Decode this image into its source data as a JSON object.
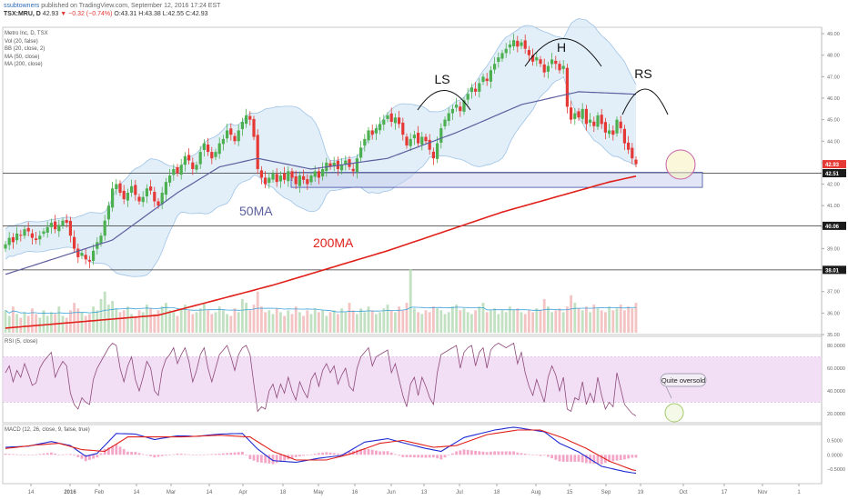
{
  "header": {
    "user": "ssubtowners",
    "published": "published on TradingView.com, September 12, 2016 17:24 EST",
    "symbol": "TSX:MRU, D",
    "last": "42.93",
    "change": "▼ −0.32 (−0.74%)",
    "ohlc": "O:43.31 H:43.38 L:42.55 C:42.93"
  },
  "indicators": [
    "Metro Inc, D, TSX",
    "Vol (20, false)",
    "BB (20, close, 2)",
    "MA (50, close)",
    "MA (200, close)"
  ],
  "rsi_label": "RSI (5, close)",
  "macd_label": "MACD (12, 26, close, 9, false, true)",
  "annotations": {
    "ls": "LS",
    "h": "H",
    "rs": "RS",
    "ma50": "50MA",
    "ma200": "200MA",
    "oversold": "Quite oversold"
  },
  "colors": {
    "up": "#4caf50",
    "down": "#e53935",
    "ma50": "#5c5f9e",
    "ma200": "#e0201a",
    "bb": "#9fc3e6",
    "rsi": "#8e4a7a",
    "macd": "#1f2bd1",
    "signal": "#e0201a",
    "hist": "#f3a6c8",
    "box": "#3f4da1"
  },
  "chart_data": [
    {
      "type": "candlestick",
      "title": "Metro Inc, D, TSX",
      "x_ticks": [
        "14",
        "2016",
        "Feb",
        "14",
        "Mar",
        "14",
        "Apr",
        "18",
        "May",
        "16",
        "Jun",
        "13",
        "Jul",
        "18",
        "Aug",
        "15",
        "Sep",
        "19",
        "Oct",
        "17",
        "Nov",
        "1"
      ],
      "y_ticks": [
        "49.00",
        "48.00",
        "47.00",
        "46.00",
        "45.00",
        "44.00",
        "43.00",
        "42.00",
        "41.00",
        "40.00",
        "39.00",
        "38.00",
        "37.00",
        "36.00",
        "35.00"
      ],
      "ylim": [
        35,
        49.3
      ],
      "price_labels": [
        {
          "text": "42.93",
          "value": 42.93,
          "kind": "last"
        },
        {
          "text": "42.51",
          "value": 42.51,
          "kind": "level"
        },
        {
          "text": "40.06",
          "value": 40.06,
          "kind": "level"
        },
        {
          "text": "38.01",
          "value": 38.01,
          "kind": "level"
        }
      ],
      "support_box": {
        "from": "2016-04-01",
        "to": "2016-09-23",
        "low": 41.85,
        "high": 42.55
      },
      "closes": [
        39.2,
        39.5,
        39.3,
        39.7,
        39.6,
        39.9,
        39.8,
        39.5,
        39.4,
        39.6,
        39.8,
        40.0,
        40.2,
        39.9,
        40.1,
        40.3,
        40.2,
        39.6,
        39.0,
        38.6,
        38.8,
        38.5,
        38.4,
        38.9,
        39.3,
        39.6,
        40.3,
        41.0,
        41.8,
        42.0,
        41.6,
        41.3,
        41.6,
        41.9,
        41.5,
        41.2,
        41.4,
        41.8,
        41.7,
        41.2,
        41.0,
        41.6,
        42.1,
        42.4,
        42.7,
        42.5,
        42.9,
        43.3,
        43.1,
        42.7,
        42.9,
        43.5,
        43.9,
        43.5,
        43.2,
        43.5,
        43.9,
        44.1,
        44.5,
        44.3,
        44.0,
        44.5,
        44.9,
        45.2,
        45.0,
        44.2,
        42.7,
        42.3,
        42.0,
        42.3,
        42.5,
        42.1,
        42.4,
        42.2,
        42.6,
        42.3,
        42.0,
        42.4,
        42.2,
        42.0,
        42.4,
        42.6,
        42.3,
        42.7,
        43.0,
        42.8,
        43.0,
        42.7,
        42.9,
        43.1,
        42.8,
        42.6,
        43.2,
        43.7,
        44.1,
        44.5,
        44.3,
        44.6,
        44.8,
        45.0,
        45.2,
        44.9,
        45.1,
        44.8,
        44.3,
        43.8,
        44.1,
        44.3,
        43.9,
        44.2,
        44.0,
        43.6,
        43.2,
        43.9,
        44.6,
        45.0,
        45.3,
        45.5,
        45.7,
        45.4,
        45.9,
        46.2,
        46.5,
        46.3,
        46.7,
        47.0,
        46.8,
        47.3,
        47.6,
        47.9,
        48.1,
        48.3,
        48.5,
        48.7,
        48.4,
        48.6,
        48.3,
        48.0,
        47.7,
        47.9,
        47.6,
        47.2,
        47.5,
        47.8,
        47.6,
        47.3,
        47.5,
        45.6,
        45.0,
        45.3,
        45.1,
        45.5,
        44.8,
        45.0,
        44.7,
        45.2,
        44.8,
        44.4,
        44.5,
        44.3,
        45.0,
        44.6,
        43.9,
        43.6,
        43.2,
        42.93
      ],
      "ma50_anchors": [
        [
          0,
          37.8
        ],
        [
          28,
          39.4
        ],
        [
          45,
          41.6
        ],
        [
          56,
          42.8
        ],
        [
          66,
          43.2
        ],
        [
          80,
          42.7
        ],
        [
          100,
          43.2
        ],
        [
          118,
          44.4
        ],
        [
          135,
          45.7
        ],
        [
          150,
          46.3
        ],
        [
          176,
          46.1
        ]
      ],
      "ma200_anchors": [
        [
          0,
          35.3
        ],
        [
          40,
          35.9
        ],
        [
          70,
          37.3
        ],
        [
          100,
          38.9
        ],
        [
          130,
          40.7
        ],
        [
          158,
          42.1
        ],
        [
          171,
          42.6
        ],
        [
          176,
          42.85
        ]
      ],
      "volume": [
        12,
        9,
        14,
        10,
        8,
        11,
        9,
        13,
        10,
        8,
        12,
        9,
        11,
        10,
        14,
        9,
        8,
        12,
        16,
        13,
        11,
        9,
        10,
        14,
        12,
        18,
        22,
        15,
        17,
        13,
        11,
        12,
        14,
        10,
        9,
        12,
        11,
        15,
        13,
        10,
        12,
        14,
        16,
        12,
        11,
        9,
        13,
        15,
        12,
        10,
        11,
        13,
        16,
        12,
        10,
        11,
        14,
        12,
        10,
        9,
        13,
        11,
        18,
        16,
        12,
        15,
        22,
        14,
        11,
        12,
        10,
        13,
        11,
        9,
        12,
        10,
        14,
        11,
        9,
        12,
        10,
        13,
        11,
        12,
        9,
        11,
        12,
        10,
        13,
        11,
        16,
        12,
        10,
        13,
        11,
        14,
        12,
        10,
        11,
        13,
        15,
        12,
        11,
        14,
        12,
        16,
        34,
        13,
        11,
        10,
        12,
        11,
        14,
        13,
        12,
        10,
        11,
        14,
        15,
        12,
        13,
        11,
        10,
        12,
        14,
        16,
        11,
        12,
        13,
        10,
        12,
        11,
        14,
        12,
        13,
        11,
        10,
        12,
        11,
        13,
        12,
        18,
        14,
        11,
        12,
        13,
        11,
        14,
        20,
        16,
        13,
        12,
        14,
        11,
        15,
        13,
        12,
        11,
        14,
        12,
        13,
        15,
        12,
        14,
        13,
        16
      ]
    },
    {
      "type": "line",
      "title": "RSI (5, close)",
      "y_ticks": [
        "80.0000",
        "60.0000",
        "40.0000",
        "20.0000"
      ],
      "ylim": [
        12,
        88
      ],
      "band": [
        30,
        70
      ],
      "values": [
        56,
        62,
        48,
        58,
        52,
        64,
        55,
        45,
        47,
        60,
        66,
        70,
        74,
        52,
        60,
        66,
        62,
        38,
        28,
        24,
        34,
        30,
        28,
        50,
        60,
        66,
        72,
        78,
        82,
        80,
        60,
        48,
        62,
        70,
        50,
        40,
        52,
        66,
        60,
        40,
        36,
        58,
        68,
        72,
        78,
        64,
        72,
        78,
        66,
        48,
        58,
        72,
        78,
        60,
        48,
        60,
        72,
        76,
        80,
        70,
        58,
        72,
        78,
        80,
        72,
        46,
        22,
        26,
        24,
        40,
        46,
        34,
        46,
        38,
        52,
        40,
        32,
        48,
        40,
        34,
        50,
        56,
        44,
        58,
        64,
        56,
        62,
        46,
        54,
        60,
        44,
        40,
        60,
        70,
        74,
        78,
        62,
        70,
        72,
        74,
        76,
        56,
        64,
        50,
        36,
        26,
        46,
        52,
        36,
        52,
        44,
        34,
        28,
        56,
        72,
        74,
        76,
        78,
        80,
        60,
        74,
        78,
        80,
        62,
        74,
        78,
        60,
        76,
        80,
        82,
        80,
        78,
        80,
        82,
        64,
        74,
        56,
        44,
        36,
        50,
        40,
        30,
        52,
        62,
        54,
        40,
        52,
        24,
        22,
        34,
        32,
        48,
        28,
        38,
        30,
        52,
        36,
        24,
        30,
        26,
        56,
        42,
        28,
        24,
        20,
        18
      ]
    },
    {
      "type": "line",
      "title": "MACD (12, 26, close, 9, false, true)",
      "y_ticks": [
        "0.5000",
        "0.0000",
        "−0.5000"
      ],
      "ylim": [
        -1.0,
        1.05
      ],
      "macd_anchors": [
        [
          0,
          0.26
        ],
        [
          6,
          0.3
        ],
        [
          12,
          0.46
        ],
        [
          17,
          0.32
        ],
        [
          21,
          -0.05
        ],
        [
          24,
          0.05
        ],
        [
          29,
          0.74
        ],
        [
          34,
          0.72
        ],
        [
          39,
          0.53
        ],
        [
          45,
          0.66
        ],
        [
          50,
          0.64
        ],
        [
          56,
          0.72
        ],
        [
          62,
          0.74
        ],
        [
          66,
          0.2
        ],
        [
          70,
          -0.2
        ],
        [
          76,
          -0.26
        ],
        [
          82,
          -0.12
        ],
        [
          88,
          -0.02
        ],
        [
          94,
          0.44
        ],
        [
          100,
          0.56
        ],
        [
          104,
          0.42
        ],
        [
          110,
          0.22
        ],
        [
          114,
          0.12
        ],
        [
          120,
          0.6
        ],
        [
          128,
          0.86
        ],
        [
          133,
          0.96
        ],
        [
          137,
          0.88
        ],
        [
          141,
          0.8
        ],
        [
          145,
          0.4
        ],
        [
          150,
          0.1
        ],
        [
          156,
          -0.4
        ],
        [
          162,
          -0.58
        ],
        [
          168,
          -0.7
        ],
        [
          176,
          -0.82
        ]
      ],
      "signal_anchors": [
        [
          0,
          0.22
        ],
        [
          8,
          0.34
        ],
        [
          14,
          0.4
        ],
        [
          20,
          0.18
        ],
        [
          26,
          0.12
        ],
        [
          32,
          0.62
        ],
        [
          38,
          0.62
        ],
        [
          46,
          0.62
        ],
        [
          56,
          0.68
        ],
        [
          64,
          0.62
        ],
        [
          70,
          0.12
        ],
        [
          76,
          -0.18
        ],
        [
          84,
          -0.18
        ],
        [
          90,
          0.02
        ],
        [
          98,
          0.4
        ],
        [
          104,
          0.5
        ],
        [
          112,
          0.26
        ],
        [
          118,
          0.32
        ],
        [
          126,
          0.7
        ],
        [
          134,
          0.86
        ],
        [
          140,
          0.86
        ],
        [
          146,
          0.58
        ],
        [
          152,
          0.22
        ],
        [
          158,
          -0.22
        ],
        [
          164,
          -0.52
        ],
        [
          170,
          -0.66
        ],
        [
          176,
          -0.76
        ]
      ]
    }
  ]
}
